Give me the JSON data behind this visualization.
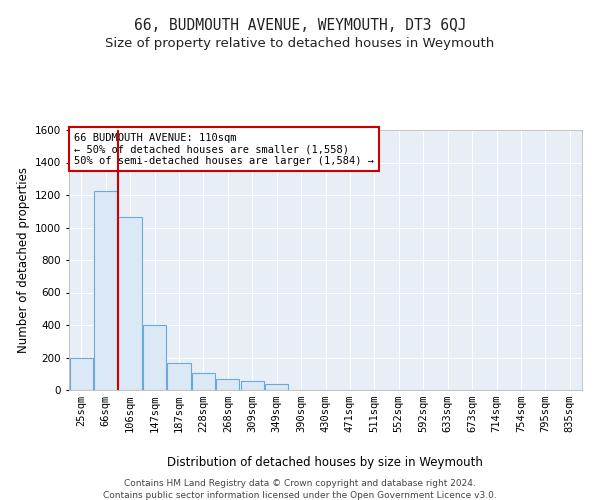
{
  "title": "66, BUDMOUTH AVENUE, WEYMOUTH, DT3 6QJ",
  "subtitle": "Size of property relative to detached houses in Weymouth",
  "xlabel": "Distribution of detached houses by size in Weymouth",
  "ylabel": "Number of detached properties",
  "footer_line1": "Contains HM Land Registry data © Crown copyright and database right 2024.",
  "footer_line2": "Contains public sector information licensed under the Open Government Licence v3.0.",
  "bin_labels": [
    "25sqm",
    "66sqm",
    "106sqm",
    "147sqm",
    "187sqm",
    "228sqm",
    "268sqm",
    "309sqm",
    "349sqm",
    "390sqm",
    "430sqm",
    "471sqm",
    "511sqm",
    "552sqm",
    "592sqm",
    "633sqm",
    "673sqm",
    "714sqm",
    "754sqm",
    "795sqm",
    "835sqm"
  ],
  "bar_heights": [
    200,
    1225,
    1065,
    400,
    165,
    105,
    70,
    55,
    35,
    0,
    0,
    0,
    0,
    0,
    0,
    0,
    0,
    0,
    0,
    0,
    0
  ],
  "bar_color": "#dbe8f5",
  "bar_edge_color": "#6aaad4",
  "ylim": [
    0,
    1600
  ],
  "yticks": [
    0,
    200,
    400,
    600,
    800,
    1000,
    1200,
    1400,
    1600
  ],
  "vline_x_pos": 1.5,
  "vline_color": "#cc0000",
  "annotation_text": "66 BUDMOUTH AVENUE: 110sqm\n← 50% of detached houses are smaller (1,558)\n50% of semi-detached houses are larger (1,584) →",
  "annotation_box_color": "#cc0000",
  "bg_color": "#ffffff",
  "plot_bg_color": "#e8eef5",
  "grid_color": "#ffffff",
  "title_fontsize": 10.5,
  "subtitle_fontsize": 9.5,
  "axis_label_fontsize": 8.5,
  "tick_fontsize": 7.5,
  "annotation_fontsize": 7.5,
  "footer_fontsize": 6.5
}
